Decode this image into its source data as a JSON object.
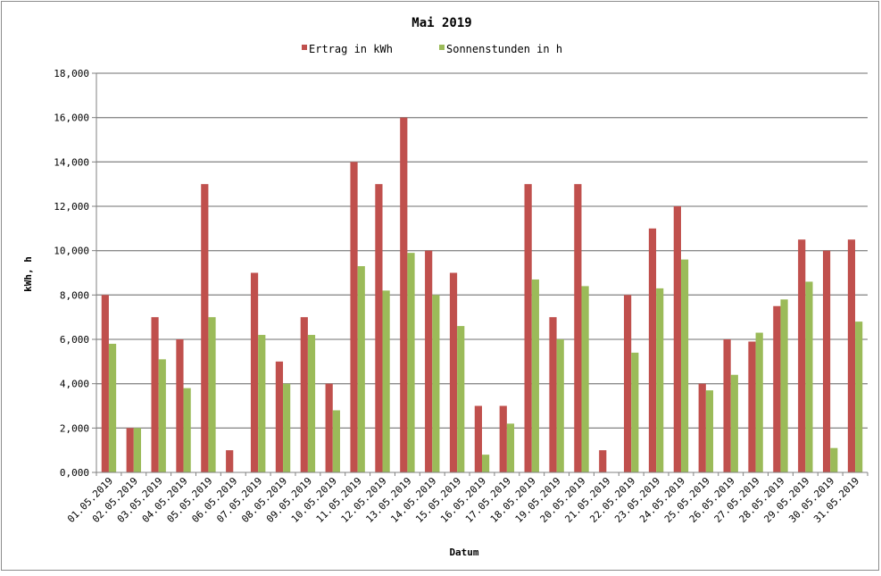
{
  "chart_data": {
    "type": "bar",
    "title": "Mai 2019",
    "xlabel": "Datum",
    "ylabel": "kWh, h",
    "ylim": [
      0,
      18
    ],
    "yticks": [
      "0,000",
      "2,000",
      "4,000",
      "6,000",
      "8,000",
      "10,000",
      "12,000",
      "14,000",
      "16,000",
      "18,000"
    ],
    "grid": true,
    "legend_position": "top",
    "categories": [
      "01.05.2019",
      "02.05.2019",
      "03.05.2019",
      "04.05.2019",
      "05.05.2019",
      "06.05.2019",
      "07.05.2019",
      "08.05.2019",
      "09.05.2019",
      "10.05.2019",
      "11.05.2019",
      "12.05.2019",
      "13.05.2019",
      "14.05.2019",
      "15.05.2019",
      "16.05.2019",
      "17.05.2019",
      "18.05.2019",
      "19.05.2019",
      "20.05.2019",
      "21.05.2019",
      "22.05.2019",
      "23.05.2019",
      "24.05.2019",
      "25.05.2019",
      "26.05.2019",
      "27.05.2019",
      "28.05.2019",
      "29.05.2019",
      "30.05.2019",
      "31.05.2019"
    ],
    "series": [
      {
        "name": "Ertrag in kWh",
        "color": "#c0504d",
        "values": [
          8,
          2,
          7,
          6,
          13,
          1,
          9,
          5,
          7,
          4,
          14,
          13,
          16,
          10,
          9,
          3,
          3,
          13,
          7,
          13,
          1,
          8,
          11,
          12,
          4,
          6,
          5.9,
          7.5,
          10.5,
          10,
          10.5
        ]
      },
      {
        "name": "Sonnenstunden in h",
        "color": "#9bbb59",
        "values": [
          5.8,
          2,
          5.1,
          3.8,
          7,
          0,
          6.2,
          4,
          6.2,
          2.8,
          9.3,
          8.2,
          9.9,
          8,
          6.6,
          0.8,
          2.2,
          8.7,
          6,
          8.4,
          0,
          5.4,
          8.3,
          9.6,
          3.7,
          4.4,
          6.3,
          7.8,
          8.6,
          1.1,
          6.8
        ]
      }
    ]
  }
}
